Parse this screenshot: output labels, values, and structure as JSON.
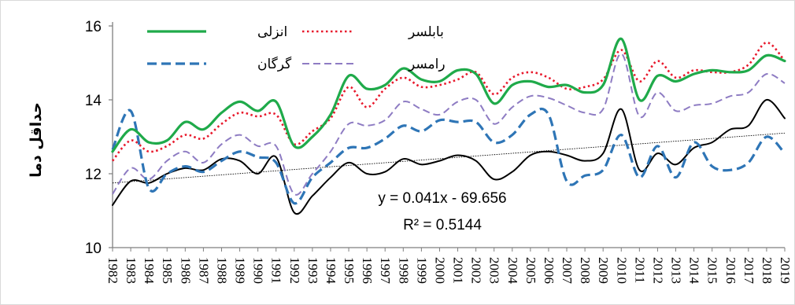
{
  "chart_data": {
    "type": "line",
    "title": "",
    "xlabel": "",
    "ylabel": "حداقل دما",
    "ylim": [
      10,
      16
    ],
    "yticks": [
      "10",
      "12",
      "14",
      "16"
    ],
    "grid": false,
    "legend_position": "top",
    "x": [
      "1982",
      "1983",
      "1984",
      "1985",
      "1986",
      "1987",
      "1988",
      "1989",
      "1990",
      "1991",
      "1992",
      "1993",
      "1994",
      "1995",
      "1996",
      "1997",
      "1998",
      "1999",
      "2000",
      "2001",
      "2002",
      "2003",
      "2004",
      "2005",
      "2006",
      "2007",
      "2008",
      "2009",
      "2010",
      "2011",
      "2012",
      "2013",
      "2014",
      "2015",
      "2016",
      "2017",
      "2018",
      "2019"
    ],
    "series": [
      {
        "name": "انزلی",
        "color": "#1faa4a",
        "dash": "",
        "width": 3.2,
        "values": [
          12.6,
          13.2,
          12.85,
          12.9,
          13.4,
          13.2,
          13.65,
          13.95,
          13.7,
          13.95,
          12.75,
          13.0,
          13.6,
          14.65,
          14.3,
          14.4,
          14.85,
          14.55,
          14.5,
          14.8,
          14.7,
          13.9,
          14.4,
          14.5,
          14.35,
          14.4,
          14.2,
          14.4,
          15.65,
          14.0,
          14.65,
          14.5,
          14.7,
          14.8,
          14.75,
          14.8,
          15.2,
          15.05
        ]
      },
      {
        "name": "بابلسر",
        "color": "#e8192c",
        "dash": "2.5 3.5",
        "width": 2.6,
        "values": [
          12.35,
          12.9,
          12.6,
          12.75,
          13.05,
          12.95,
          13.35,
          13.65,
          13.55,
          13.6,
          12.8,
          13.15,
          13.5,
          14.35,
          13.8,
          14.3,
          14.6,
          14.35,
          14.4,
          14.55,
          14.75,
          14.15,
          14.6,
          14.75,
          14.6,
          14.3,
          14.35,
          14.55,
          15.35,
          14.5,
          15.05,
          14.6,
          14.8,
          14.75,
          14.75,
          14.95,
          15.55,
          15.05
        ]
      },
      {
        "name": "گرگان",
        "color": "#2e75b6",
        "dash": "12 6",
        "width": 3.2,
        "values": [
          12.65,
          13.7,
          11.6,
          12.0,
          12.2,
          12.05,
          12.35,
          12.6,
          12.45,
          12.3,
          11.2,
          11.9,
          12.3,
          12.7,
          12.7,
          12.95,
          13.3,
          13.15,
          13.45,
          13.4,
          13.4,
          12.85,
          13.05,
          13.6,
          13.6,
          11.8,
          11.95,
          12.1,
          13.05,
          11.9,
          12.75,
          11.9,
          12.85,
          12.2,
          12.1,
          12.3,
          13.0,
          12.55
        ]
      },
      {
        "name": "رامسر",
        "color": "#8e7cc3",
        "dash": "9 5",
        "width": 2.0,
        "values": [
          11.45,
          12.15,
          11.85,
          12.35,
          12.6,
          12.3,
          12.8,
          13.05,
          12.75,
          12.75,
          11.45,
          12.0,
          12.6,
          13.35,
          13.3,
          13.45,
          13.95,
          13.75,
          13.6,
          13.95,
          14.0,
          13.35,
          13.8,
          14.1,
          14.05,
          13.85,
          13.65,
          13.75,
          15.25,
          13.55,
          14.2,
          13.7,
          13.85,
          13.9,
          14.1,
          14.2,
          14.7,
          14.45
        ]
      },
      {
        "name": "",
        "color": "#000000",
        "dash": "",
        "width": 2.0,
        "values": [
          11.15,
          11.8,
          11.75,
          12.0,
          12.15,
          12.1,
          12.4,
          12.35,
          12.0,
          12.45,
          10.95,
          11.4,
          11.9,
          12.3,
          12.0,
          12.05,
          12.4,
          12.25,
          12.35,
          12.5,
          12.35,
          11.85,
          12.05,
          12.5,
          12.6,
          12.5,
          12.35,
          12.55,
          13.75,
          12.1,
          12.55,
          12.25,
          12.7,
          12.85,
          13.2,
          13.3,
          14.0,
          13.5
        ]
      }
    ],
    "trendline": {
      "color": "#000000",
      "equation": "y = 0.041x - 69.656",
      "r_squared": "R² = 0.5144",
      "start": 11.75,
      "end": 13.1
    }
  }
}
